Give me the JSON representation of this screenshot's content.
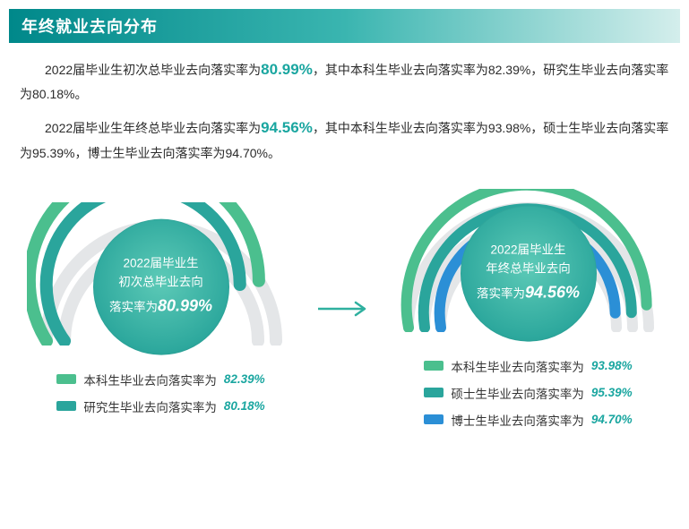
{
  "colors": {
    "track": "#e4e6e8",
    "arc_outer": "#4bbf8e",
    "arc_mid": "#2aa59c",
    "arc_inner": "#2b8fd6",
    "accent_text": "#1aa6a0",
    "disc_grad_a": "#5dcab7",
    "disc_grad_b": "#1a8f86"
  },
  "header": {
    "title": "年终就业去向分布"
  },
  "para1": {
    "a": "2022届毕业生初次总毕业去向落实率为",
    "hl": "80.99%",
    "b": "，其中本科生毕业去向落实率为82.39%，研究生毕业去向落实率为80.18%。"
  },
  "para2": {
    "a": "2022届毕业生年终总毕业去向落实率为",
    "hl": "94.56%",
    "b": "，其中本科生毕业去向落实率为93.98%，硕士生毕业去向落实率为95.39%，博士生毕业去向落实率为94.70%。"
  },
  "gauge_left": {
    "type": "radial-gauge",
    "center_line1": "2022届毕业生",
    "center_line2": "初次总毕业去向",
    "center_rate_prefix": "落实率为",
    "center_rate_value": "80.99%",
    "arcs": [
      {
        "radius": 128,
        "stroke_width": 14,
        "color": "#4bbf8e",
        "pct": 82.39
      },
      {
        "radius": 108,
        "stroke_width": 14,
        "color": "#2aa59c",
        "pct": 80.18
      }
    ],
    "legend": [
      {
        "color": "#4bbf8e",
        "label": "本科生毕业去向落实率为",
        "value": "82.39%"
      },
      {
        "color": "#2aa59c",
        "label": "研究生毕业去向落实率为",
        "value": "80.18%"
      }
    ]
  },
  "gauge_right": {
    "type": "radial-gauge",
    "center_line1": "2022届毕业生",
    "center_line2": "年终总毕业去向",
    "center_rate_prefix": "落实率为",
    "center_rate_value": "94.56%",
    "arcs": [
      {
        "radius": 134,
        "stroke_width": 12,
        "color": "#4bbf8e",
        "pct": 93.98
      },
      {
        "radius": 116,
        "stroke_width": 12,
        "color": "#2aa59c",
        "pct": 95.39
      },
      {
        "radius": 98,
        "stroke_width": 12,
        "color": "#2b8fd6",
        "pct": 94.7
      }
    ],
    "legend": [
      {
        "color": "#4bbf8e",
        "label": "本科生毕业去向落实率为",
        "value": "93.98%"
      },
      {
        "color": "#2aa59c",
        "label": "硕士生毕业去向落实率为",
        "value": "95.39%"
      },
      {
        "color": "#2b8fd6",
        "label": "博士生毕业去向落实率为",
        "value": "94.70%"
      }
    ]
  }
}
